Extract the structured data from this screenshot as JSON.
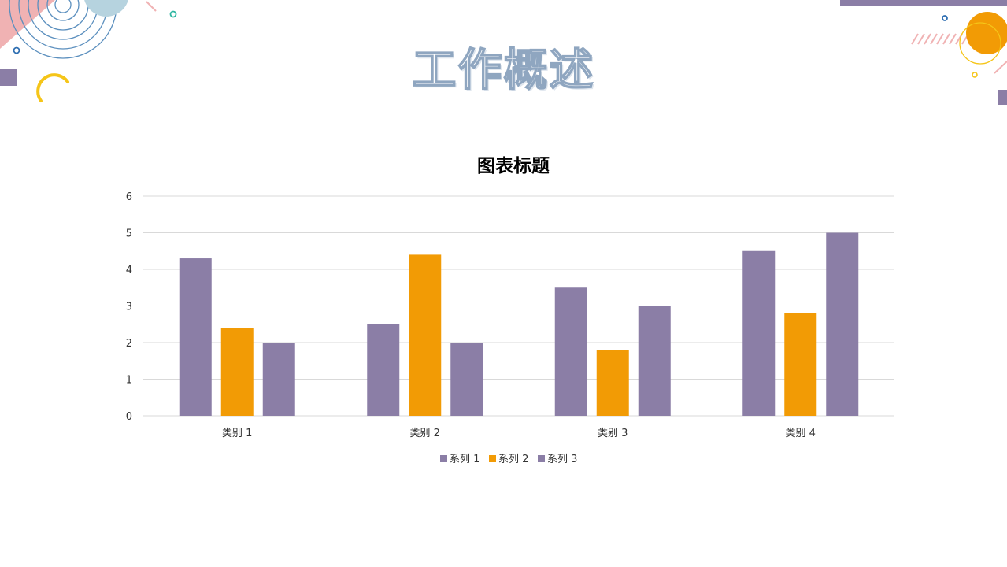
{
  "slide": {
    "title": "工作概述"
  },
  "colors": {
    "purple": "#8b7ea6",
    "orange": "#f29b05",
    "grid": "#d9d9d9"
  },
  "chart_data": {
    "type": "bar",
    "title": "图表标题",
    "categories": [
      "类别 1",
      "类别 2",
      "类别 3",
      "类别 4"
    ],
    "series": [
      {
        "name": "系列 1",
        "values": [
          4.3,
          2.5,
          3.5,
          4.5
        ],
        "color": "#8b7ea6"
      },
      {
        "name": "系列 2",
        "values": [
          2.4,
          4.4,
          1.8,
          2.8
        ],
        "color": "#f29b05"
      },
      {
        "name": "系列 3",
        "values": [
          2.0,
          2.0,
          3.0,
          5.0
        ],
        "color": "#8b7ea6"
      }
    ],
    "ylim": [
      0,
      6
    ],
    "yticks": [
      0,
      1,
      2,
      3,
      4,
      5,
      6
    ],
    "grid": true,
    "legend": "bottom"
  }
}
